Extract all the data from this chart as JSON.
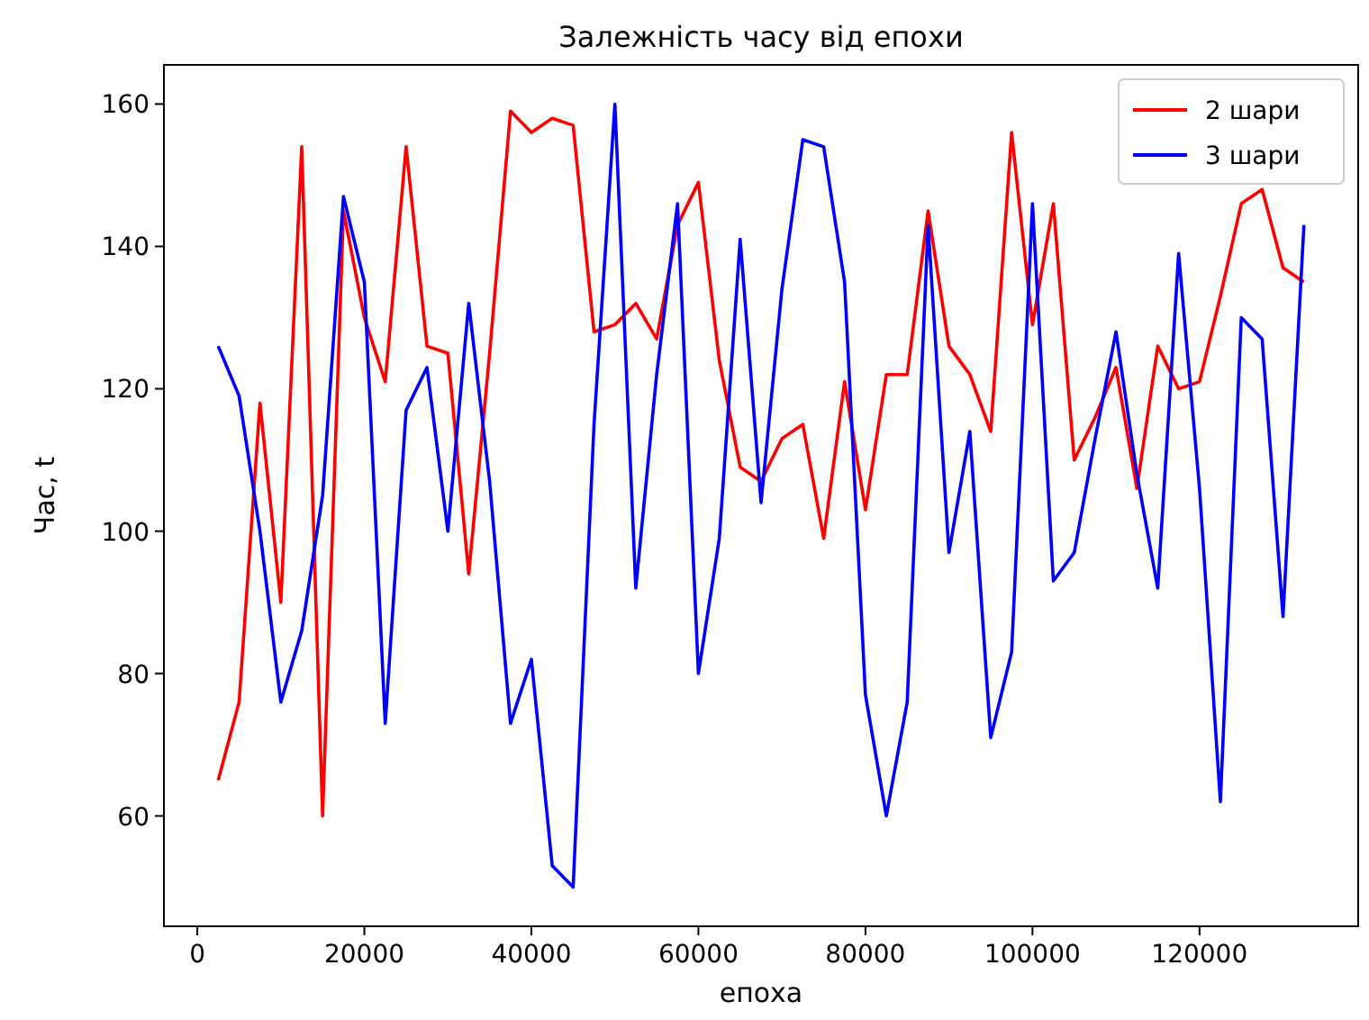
{
  "chart_data": {
    "type": "line",
    "title": "Залежність часу від епохи",
    "xlabel": "епоха",
    "ylabel": "Час, t",
    "x": [
      2500,
      5000,
      7500,
      10000,
      12500,
      15000,
      17500,
      20000,
      22500,
      25000,
      27500,
      30000,
      32500,
      35000,
      37500,
      40000,
      42500,
      45000,
      47500,
      50000,
      52500,
      55000,
      57500,
      60000,
      62500,
      65000,
      67500,
      70000,
      72500,
      75000,
      77500,
      80000,
      82500,
      85000,
      87500,
      90000,
      92500,
      95000,
      97500,
      100000,
      102500,
      105000,
      107500,
      110000,
      112500,
      115000,
      117500,
      120000,
      122500,
      125000,
      127500,
      130000,
      132500
    ],
    "series": [
      {
        "name": "2 шари",
        "color": "#ff0000",
        "values": [
          65,
          76,
          118,
          90,
          154,
          60,
          145,
          130,
          121,
          154,
          126,
          125,
          94,
          125,
          159,
          156,
          158,
          157,
          128,
          129,
          132,
          127,
          143,
          149,
          124,
          109,
          107,
          113,
          115,
          99,
          121,
          103,
          122,
          122,
          145,
          126,
          122,
          114,
          156,
          129,
          146,
          110,
          116,
          123,
          106,
          126,
          120,
          121,
          133,
          146,
          148,
          137,
          135
        ]
      },
      {
        "name": "3 шари",
        "color": "#0000ff",
        "values": [
          126,
          119,
          100,
          76,
          86,
          105,
          147,
          135,
          73,
          117,
          123,
          100,
          132,
          107,
          73,
          82,
          53,
          50,
          115,
          160,
          92,
          122,
          146,
          80,
          99,
          141,
          104,
          134,
          155,
          154,
          135,
          77,
          60,
          76,
          143,
          97,
          114,
          71,
          83,
          146,
          93,
          97,
          113,
          128,
          108,
          92,
          139,
          106,
          62,
          130,
          127,
          88,
          143
        ]
      }
    ],
    "xlim": [
      -4000,
      139000
    ],
    "ylim": [
      44.5,
      165.5
    ],
    "xticks": [
      0,
      20000,
      40000,
      60000,
      80000,
      100000,
      120000
    ],
    "yticks": [
      60,
      80,
      100,
      120,
      140,
      160
    ],
    "grid": false,
    "legend": "top right",
    "line_style": "solid",
    "marker": "none"
  }
}
